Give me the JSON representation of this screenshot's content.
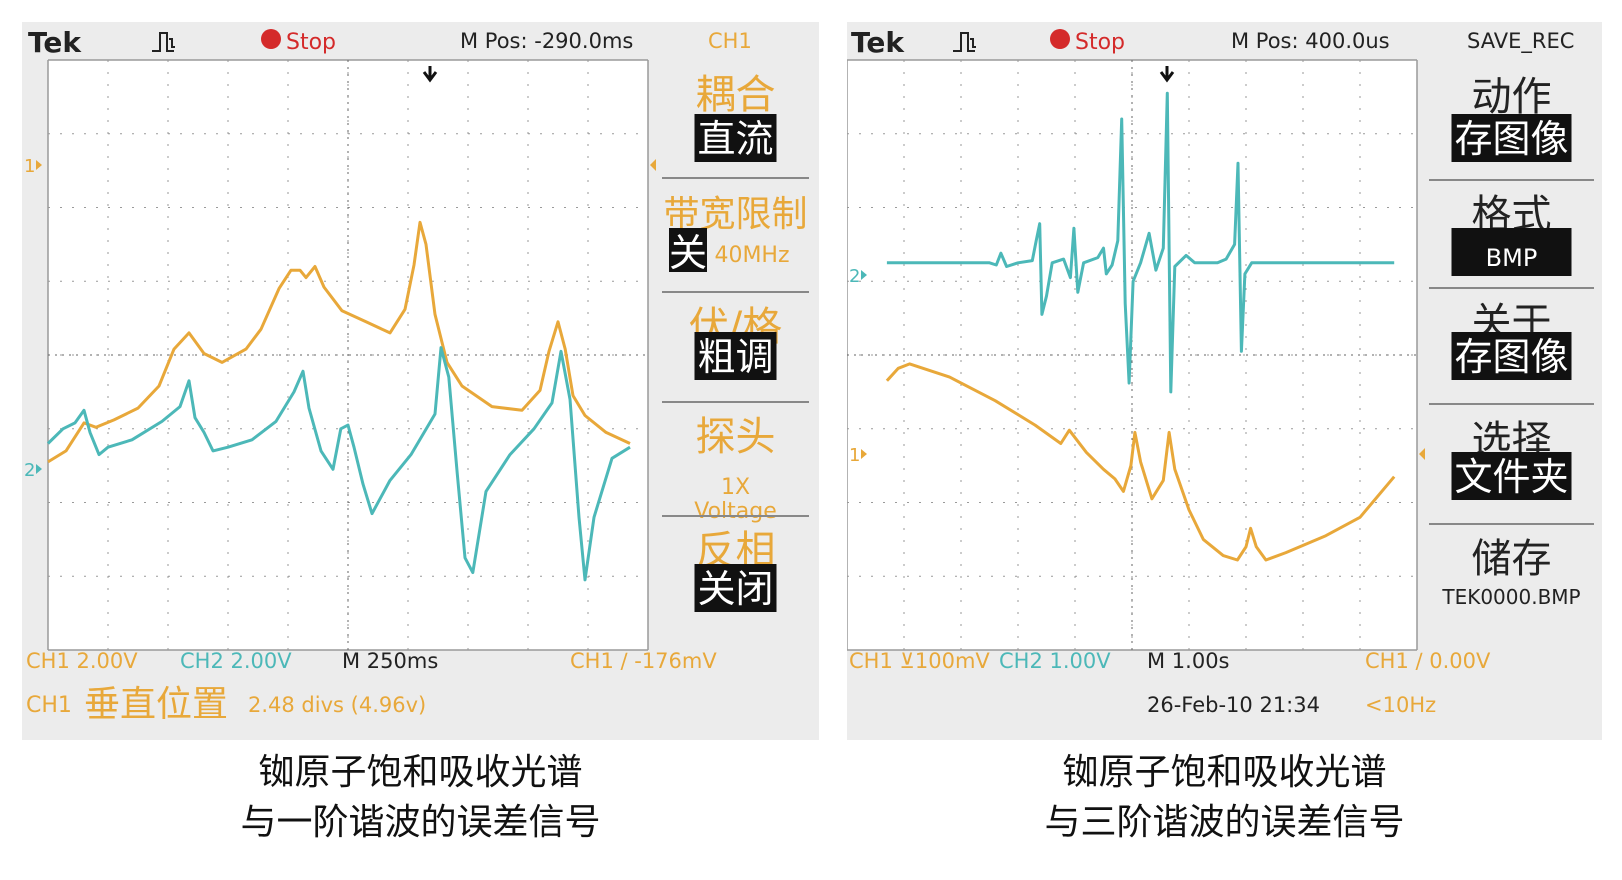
{
  "colors": {
    "ch1": "#e8a83a",
    "ch2": "#4cb8b8",
    "grid": "#9a9a9a",
    "panel": "#ececec",
    "text_dark": "#222222",
    "stop_red": "#d42a2a",
    "menu_black": "#111111"
  },
  "chart_data": [
    {
      "type": "line",
      "title": "",
      "grid": true,
      "header": {
        "brand": "Tek",
        "trigger_icon": "pulse-trigger-icon",
        "run_state": "Stop",
        "m_pos": "M Pos: -290.0ms",
        "menu_title": "CH1"
      },
      "footer": {
        "ch1_scale": "CH1  2.00V",
        "ch2_scale": "CH2  2.00V",
        "timebase": "M 250ms",
        "trigger": "CH1  ∕  -176mV",
        "status_label": "CH1",
        "status_title": "垂直位置",
        "status_value": "2.48 divs (4.96v)"
      },
      "menu": [
        {
          "title": "耦合",
          "value": "直流"
        },
        {
          "title": "带宽限制",
          "value": "关",
          "extra": "40MHz"
        },
        {
          "title": "伏/格",
          "value": "粗调"
        },
        {
          "title": "探头",
          "value": "1X",
          "extra": "Voltage"
        },
        {
          "title": "反相",
          "value": "关闭"
        }
      ],
      "channel_markers": [
        "1",
        "2"
      ],
      "x_range": [
        0,
        10
      ],
      "y_range": [
        4,
        -4
      ],
      "series": [
        {
          "name": "1",
          "channel": "ch1",
          "values": [
            [
              0,
              -1.45
            ],
            [
              0.3,
              -1.3
            ],
            [
              0.6,
              -0.92
            ],
            [
              0.8,
              -0.98
            ],
            [
              1.1,
              -0.88
            ],
            [
              1.5,
              -0.72
            ],
            [
              1.85,
              -0.42
            ],
            [
              2.1,
              0.08
            ],
            [
              2.35,
              0.3
            ],
            [
              2.6,
              0.02
            ],
            [
              2.9,
              -0.1
            ],
            [
              3.3,
              0.08
            ],
            [
              3.55,
              0.35
            ],
            [
              3.85,
              0.9
            ],
            [
              4.05,
              1.15
            ],
            [
              4.2,
              1.15
            ],
            [
              4.3,
              1.05
            ],
            [
              4.45,
              1.2
            ],
            [
              4.6,
              0.92
            ],
            [
              4.9,
              0.6
            ],
            [
              5.3,
              0.45
            ],
            [
              5.7,
              0.3
            ],
            [
              5.95,
              0.62
            ],
            [
              6.1,
              1.22
            ],
            [
              6.2,
              1.8
            ],
            [
              6.3,
              1.5
            ],
            [
              6.45,
              0.55
            ],
            [
              6.65,
              -0.1
            ],
            [
              6.9,
              -0.42
            ],
            [
              7.4,
              -0.7
            ],
            [
              7.9,
              -0.75
            ],
            [
              8.2,
              -0.48
            ],
            [
              8.35,
              0.05
            ],
            [
              8.5,
              0.45
            ],
            [
              8.62,
              0.08
            ],
            [
              8.75,
              -0.55
            ],
            [
              8.95,
              -0.82
            ],
            [
              9.3,
              -1.05
            ],
            [
              9.7,
              -1.2
            ]
          ]
        },
        {
          "name": "2",
          "channel": "ch2",
          "values": [
            [
              0,
              -1.2
            ],
            [
              0.25,
              -1.0
            ],
            [
              0.45,
              -0.92
            ],
            [
              0.6,
              -0.75
            ],
            [
              0.7,
              -1.05
            ],
            [
              0.85,
              -1.35
            ],
            [
              1.0,
              -1.25
            ],
            [
              1.4,
              -1.15
            ],
            [
              1.9,
              -0.9
            ],
            [
              2.2,
              -0.7
            ],
            [
              2.35,
              -0.35
            ],
            [
              2.45,
              -0.85
            ],
            [
              2.6,
              -1.05
            ],
            [
              2.75,
              -1.3
            ],
            [
              3.0,
              -1.25
            ],
            [
              3.4,
              -1.15
            ],
            [
              3.8,
              -0.9
            ],
            [
              4.1,
              -0.5
            ],
            [
              4.25,
              -0.22
            ],
            [
              4.35,
              -0.72
            ],
            [
              4.55,
              -1.3
            ],
            [
              4.75,
              -1.55
            ],
            [
              4.88,
              -1.0
            ],
            [
              5.0,
              -0.95
            ],
            [
              5.1,
              -1.25
            ],
            [
              5.25,
              -1.75
            ],
            [
              5.4,
              -2.15
            ],
            [
              5.7,
              -1.7
            ],
            [
              6.05,
              -1.35
            ],
            [
              6.45,
              -0.8
            ],
            [
              6.55,
              0.1
            ],
            [
              6.68,
              -0.3
            ],
            [
              6.82,
              -1.6
            ],
            [
              6.95,
              -2.75
            ],
            [
              7.08,
              -2.95
            ],
            [
              7.3,
              -1.85
            ],
            [
              7.7,
              -1.35
            ],
            [
              8.1,
              -1.0
            ],
            [
              8.4,
              -0.65
            ],
            [
              8.55,
              0.05
            ],
            [
              8.7,
              -0.6
            ],
            [
              8.85,
              -2.2
            ],
            [
              8.95,
              -3.05
            ],
            [
              9.1,
              -2.2
            ],
            [
              9.4,
              -1.4
            ],
            [
              9.7,
              -1.25
            ]
          ]
        }
      ]
    },
    {
      "type": "line",
      "title": "",
      "grid": true,
      "header": {
        "brand": "Tek",
        "trigger_icon": "pulse-trigger-icon",
        "run_state": "Stop",
        "m_pos": "M Pos: 400.0us",
        "menu_title": "SAVE_REC"
      },
      "footer": {
        "ch1_scale": "CH1 ⊻100mV",
        "ch2_scale": "CH2  1.00V",
        "timebase": "M 1.00s",
        "trigger": "CH1  ∕  0.00V",
        "datetime": "26-Feb-10 21:34",
        "frequency": "<10Hz"
      },
      "menu": [
        {
          "title": "动作",
          "value": "存图像"
        },
        {
          "title": "格式",
          "value": "BMP"
        },
        {
          "title": "关于",
          "value": "存图像"
        },
        {
          "title": "选择",
          "value": "文件夹"
        },
        {
          "title": "储存",
          "value": "TEK0000.BMP"
        }
      ],
      "channel_markers": [
        "2",
        "1"
      ],
      "x_range": [
        0,
        10
      ],
      "y_range": [
        4,
        -4
      ],
      "series": [
        {
          "name": "2",
          "channel": "ch2",
          "values": [
            [
              0.7,
              1.25
            ],
            [
              2.5,
              1.25
            ],
            [
              2.62,
              1.22
            ],
            [
              2.7,
              1.38
            ],
            [
              2.8,
              1.2
            ],
            [
              3.0,
              1.25
            ],
            [
              3.25,
              1.28
            ],
            [
              3.32,
              1.55
            ],
            [
              3.38,
              1.78
            ],
            [
              3.42,
              0.55
            ],
            [
              3.5,
              0.8
            ],
            [
              3.6,
              1.25
            ],
            [
              3.8,
              1.3
            ],
            [
              3.92,
              1.05
            ],
            [
              3.98,
              1.72
            ],
            [
              4.05,
              0.85
            ],
            [
              4.15,
              1.25
            ],
            [
              4.4,
              1.32
            ],
            [
              4.5,
              1.45
            ],
            [
              4.55,
              1.1
            ],
            [
              4.65,
              1.22
            ],
            [
              4.75,
              1.55
            ],
            [
              4.82,
              3.2
            ],
            [
              4.88,
              0.7
            ],
            [
              4.95,
              -0.38
            ],
            [
              5.02,
              1.0
            ],
            [
              5.15,
              1.25
            ],
            [
              5.3,
              1.65
            ],
            [
              5.42,
              1.15
            ],
            [
              5.55,
              1.45
            ],
            [
              5.62,
              3.55
            ],
            [
              5.68,
              -0.5
            ],
            [
              5.75,
              1.2
            ],
            [
              5.95,
              1.35
            ],
            [
              6.1,
              1.25
            ],
            [
              6.5,
              1.25
            ],
            [
              6.65,
              1.3
            ],
            [
              6.8,
              1.5
            ],
            [
              6.86,
              2.6
            ],
            [
              6.92,
              0.05
            ],
            [
              6.98,
              1.1
            ],
            [
              7.1,
              1.25
            ],
            [
              9.6,
              1.25
            ]
          ]
        },
        {
          "name": "1",
          "channel": "ch1",
          "values": [
            [
              0.7,
              -0.35
            ],
            [
              0.9,
              -0.18
            ],
            [
              1.1,
              -0.12
            ],
            [
              1.8,
              -0.3
            ],
            [
              2.6,
              -0.62
            ],
            [
              3.3,
              -0.95
            ],
            [
              3.75,
              -1.2
            ],
            [
              3.9,
              -1.02
            ],
            [
              4.2,
              -1.32
            ],
            [
              4.5,
              -1.55
            ],
            [
              4.7,
              -1.68
            ],
            [
              4.85,
              -1.85
            ],
            [
              4.98,
              -1.5
            ],
            [
              5.05,
              -1.05
            ],
            [
              5.15,
              -1.45
            ],
            [
              5.35,
              -1.95
            ],
            [
              5.55,
              -1.7
            ],
            [
              5.65,
              -1.05
            ],
            [
              5.75,
              -1.55
            ],
            [
              6.0,
              -2.1
            ],
            [
              6.25,
              -2.5
            ],
            [
              6.6,
              -2.72
            ],
            [
              6.85,
              -2.78
            ],
            [
              7.0,
              -2.6
            ],
            [
              7.08,
              -2.35
            ],
            [
              7.18,
              -2.6
            ],
            [
              7.35,
              -2.78
            ],
            [
              7.7,
              -2.68
            ],
            [
              8.4,
              -2.45
            ],
            [
              9.0,
              -2.2
            ],
            [
              9.6,
              -1.65
            ]
          ]
        }
      ]
    }
  ],
  "captions": [
    {
      "line1": "铷原子饱和吸收光谱",
      "line2": "与一阶谐波的误差信号"
    },
    {
      "line1": "铷原子饱和吸收光谱",
      "line2": "与三阶谐波的误差信号"
    }
  ]
}
